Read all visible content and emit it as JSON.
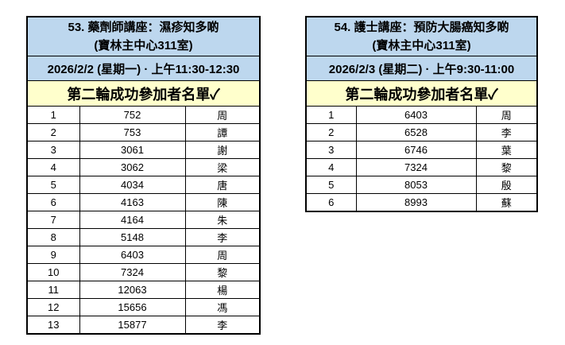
{
  "colors": {
    "header_blue": "#BDD7EE",
    "round_yellow": "#FFFFCC",
    "border": "#000000",
    "page_background": "#FFFFFF"
  },
  "tables": [
    {
      "header": {
        "title_line1": "53. 藥劑師講座：濕疹知多啲",
        "title_line2": "(寶林主中心311室)",
        "datetime": "2026/2/2 (星期一) · 上午11:30-12:30",
        "round_header": "第二輪成功參加者名單✓"
      },
      "columns": [
        "no",
        "member_id",
        "surname"
      ],
      "rows": [
        {
          "no": "1",
          "member_id": "752",
          "surname": "周"
        },
        {
          "no": "2",
          "member_id": "753",
          "surname": "譚"
        },
        {
          "no": "3",
          "member_id": "3061",
          "surname": "謝"
        },
        {
          "no": "4",
          "member_id": "3062",
          "surname": "梁"
        },
        {
          "no": "5",
          "member_id": "4034",
          "surname": "唐"
        },
        {
          "no": "6",
          "member_id": "4163",
          "surname": "陳"
        },
        {
          "no": "7",
          "member_id": "4164",
          "surname": "朱"
        },
        {
          "no": "8",
          "member_id": "5148",
          "surname": "李"
        },
        {
          "no": "9",
          "member_id": "6403",
          "surname": "周"
        },
        {
          "no": "10",
          "member_id": "7324",
          "surname": "黎"
        },
        {
          "no": "11",
          "member_id": "12063",
          "surname": "楊"
        },
        {
          "no": "12",
          "member_id": "15656",
          "surname": "馮"
        },
        {
          "no": "13",
          "member_id": "15877",
          "surname": "李"
        }
      ]
    },
    {
      "header": {
        "title_line1": "54. 護士講座：預防大腸癌知多啲",
        "title_line2": "(寶林主中心311室)",
        "datetime": "2026/2/3 (星期二) · 上午9:30-11:00",
        "round_header": "第二輪成功參加者名單✓"
      },
      "columns": [
        "no",
        "member_id",
        "surname"
      ],
      "rows": [
        {
          "no": "1",
          "member_id": "6403",
          "surname": "周"
        },
        {
          "no": "2",
          "member_id": "6528",
          "surname": "李"
        },
        {
          "no": "3",
          "member_id": "6746",
          "surname": "葉"
        },
        {
          "no": "4",
          "member_id": "7324",
          "surname": "黎"
        },
        {
          "no": "5",
          "member_id": "8053",
          "surname": "殷"
        },
        {
          "no": "6",
          "member_id": "8993",
          "surname": "蘇"
        }
      ]
    }
  ]
}
